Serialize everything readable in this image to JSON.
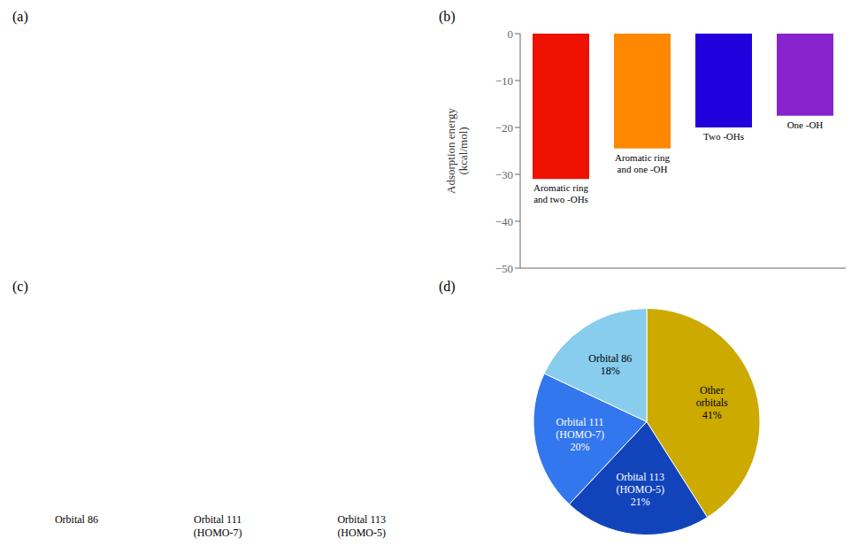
{
  "chart_data": [
    {
      "type": "text",
      "title": "(a)"
    },
    {
      "type": "bar",
      "title": "(b)",
      "categories": [
        null,
        null,
        null,
        null
      ],
      "values": [
        -31,
        -24.5,
        -20,
        -17.5
      ],
      "colors": [
        "#ee1100",
        "#ff8800",
        "#2200dd",
        "#8822cc"
      ],
      "ylabel": "Adsorption energy\n(kcal/mol)",
      "ylim": [
        -50,
        0
      ],
      "yticks": [
        {
          "value": -50,
          "label": "−50"
        },
        {
          "value": -40,
          "label": "−40"
        },
        {
          "value": -30,
          "label": "−30"
        },
        {
          "value": -20,
          "label": "−20"
        },
        {
          "value": -10,
          "label": "−10"
        },
        0
      ],
      "annotations": [
        "Aromatic ring\nand two -OHs",
        "Aromatic ring\nand one -OH",
        "Two -OHs",
        "One -OH"
      ],
      "tick_labels": "y",
      "grid": false
    },
    {
      "type": "text",
      "title": "(c)",
      "annotations": [
        "Orbital 86",
        "Orbital 111\n(HOMO-7)",
        "Orbital 113\n(HOMO-5)"
      ]
    },
    {
      "type": "pie",
      "title": "(d)",
      "categories": [
        "Other\norbitals",
        "Orbital 113\n(HOMO-5)",
        "Orbital 111\n(HOMO-7)",
        "Orbital 86"
      ],
      "values": [
        41,
        21,
        20,
        18
      ],
      "value_labels": [
        "41%",
        "21%",
        "20%",
        "18%"
      ],
      "colors": [
        "#ccaa00",
        "#1144bb",
        "#3377ee",
        "#88ccee"
      ],
      "data_labels": true
    }
  ]
}
